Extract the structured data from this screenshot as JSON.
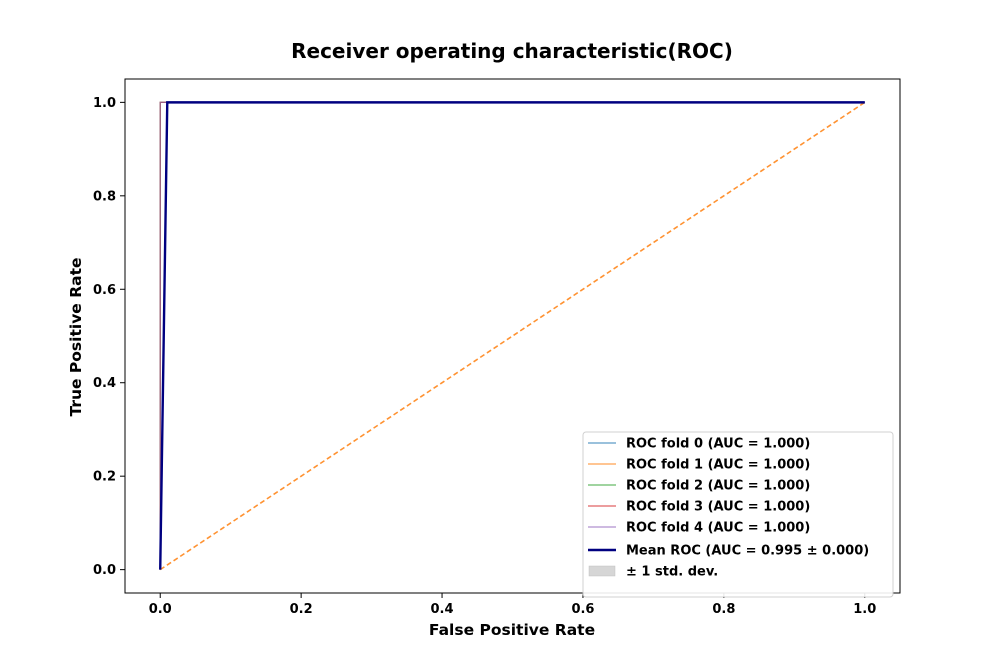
{
  "chart_data": {
    "type": "line",
    "title": "Receiver operating characteristic(ROC)",
    "xlabel": "False Positive Rate",
    "ylabel": "True Positive Rate",
    "xlim": [
      -0.05,
      1.05
    ],
    "ylim": [
      -0.05,
      1.05
    ],
    "xticks": [
      "0.0",
      "0.2",
      "0.4",
      "0.6",
      "0.8",
      "1.0"
    ],
    "yticks": [
      "0.0",
      "0.2",
      "0.4",
      "0.6",
      "0.8",
      "1.0"
    ],
    "grid": false,
    "legend_position": "lower-right",
    "series": [
      {
        "name": "ROC fold 0 (AUC = 1.000)",
        "color": "#1f77b4",
        "x": [
          0,
          0,
          1
        ],
        "y": [
          0,
          1,
          1
        ]
      },
      {
        "name": "ROC fold 1 (AUC = 1.000)",
        "color": "#ff7f0e",
        "x": [
          0,
          0,
          1
        ],
        "y": [
          0,
          1,
          1
        ]
      },
      {
        "name": "ROC fold 2 (AUC = 1.000)",
        "color": "#2ca02c",
        "x": [
          0,
          0,
          1
        ],
        "y": [
          0,
          1,
          1
        ]
      },
      {
        "name": "ROC fold 3 (AUC = 1.000)",
        "color": "#d62728",
        "x": [
          0,
          0,
          1
        ],
        "y": [
          0,
          1,
          1
        ]
      },
      {
        "name": "ROC fold 4 (AUC = 1.000)",
        "color": "#9467bd",
        "x": [
          0,
          0,
          1
        ],
        "y": [
          0,
          1,
          1
        ]
      },
      {
        "name": "Mean ROC (AUC = 0.995 ± 0.000)",
        "color": "#000080",
        "x": [
          0,
          0.01,
          1
        ],
        "y": [
          0,
          1,
          1
        ],
        "mean": true
      }
    ],
    "chance_line": {
      "color": "#ff7f0e",
      "x": [
        0,
        1
      ],
      "y": [
        0,
        1
      ],
      "dashed": true
    },
    "std_band": {
      "label": "± 1 std. dev.",
      "color": "#bbbbbb"
    }
  }
}
